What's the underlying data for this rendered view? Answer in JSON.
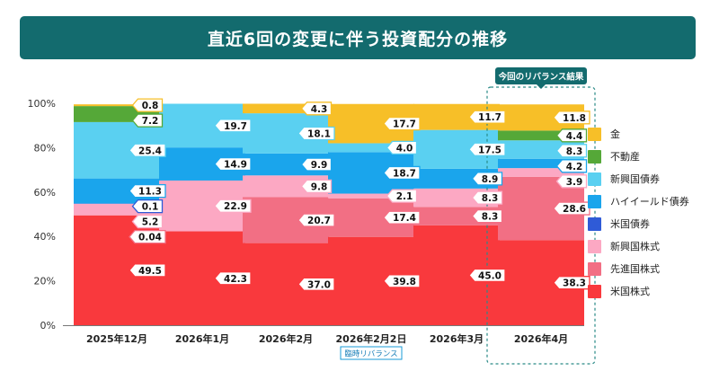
{
  "title": "直近6回の変更に伴う投資配分の推移",
  "callout": "今回のリバランス結果",
  "special_note": "臨時リバランス",
  "colors": {
    "gold": "#f7bf28",
    "reit": "#55a838",
    "em_bond": "#5ad0f1",
    "high_yield": "#1aa5ec",
    "us_bond": "#2f5bd7",
    "em_equity": "#fca8c3",
    "dev_equity": "#f26f84",
    "us_equity": "#f9393d",
    "title_bg": "#136b6e"
  },
  "chart_data": {
    "type": "bar",
    "stacked": true,
    "title": "直近6回の変更に伴う投資配分の推移",
    "categories": [
      "2025年12月",
      "2026年1月",
      "2026年2月",
      "2026年2月2日",
      "2026年3月",
      "2026年4月"
    ],
    "ylim": [
      0,
      100
    ],
    "yticks": [
      "0%",
      "20%",
      "40%",
      "60%",
      "80%",
      "100%"
    ],
    "series": [
      {
        "name": "米国株式",
        "key": "us_equity",
        "values": [
          49.5,
          42.3,
          37.0,
          39.8,
          45.0,
          38.3
        ],
        "labels": [
          "49.5",
          "42.3",
          "37.0",
          "39.8",
          "45.0",
          "38.3"
        ]
      },
      {
        "name": "先進国株式",
        "key": "dev_equity",
        "values": [
          0.04,
          0,
          20.7,
          17.4,
          8.3,
          28.6
        ],
        "labels": [
          "0.04",
          "",
          "20.7",
          "17.4",
          "8.3",
          "28.6"
        ]
      },
      {
        "name": "新興国株式",
        "key": "em_equity",
        "values": [
          5.2,
          22.9,
          9.8,
          2.1,
          8.3,
          3.9
        ],
        "labels": [
          "5.2",
          "22.9",
          "9.8",
          "2.1",
          "8.3",
          "3.9"
        ]
      },
      {
        "name": "米国債券",
        "key": "us_bond",
        "values": [
          0.1,
          0,
          0,
          0,
          0,
          0
        ],
        "labels": [
          "0.1",
          "",
          "",
          "",
          "",
          ""
        ]
      },
      {
        "name": "ハイイールド債券",
        "key": "high_yield",
        "values": [
          11.3,
          14.9,
          9.9,
          18.7,
          8.9,
          4.2
        ],
        "labels": [
          "11.3",
          "14.9",
          "9.9",
          "18.7",
          "8.9",
          "4.2"
        ]
      },
      {
        "name": "新興国債券",
        "key": "em_bond",
        "values": [
          25.4,
          19.7,
          18.1,
          4.0,
          17.5,
          8.3
        ],
        "labels": [
          "25.4",
          "19.7",
          "18.1",
          "4.0",
          "17.5",
          "8.3"
        ]
      },
      {
        "name": "不動産",
        "key": "reit",
        "values": [
          7.2,
          0,
          0,
          0,
          0,
          4.4
        ],
        "labels": [
          "7.2",
          "",
          "",
          "",
          "",
          "4.4"
        ]
      },
      {
        "name": "金",
        "key": "gold",
        "values": [
          0.8,
          0,
          4.3,
          17.7,
          11.7,
          11.8
        ],
        "labels": [
          "0.8",
          "",
          "4.3",
          "17.7",
          "11.7",
          "11.8"
        ]
      }
    ],
    "legend": [
      "金",
      "不動産",
      "新興国債券",
      "ハイイールド債券",
      "米国債券",
      "新興国株式",
      "先進国株式",
      "米国株式"
    ],
    "legend_position": "right",
    "highlight_category": "2026年4月",
    "annotated_category": "2026年2月2日"
  }
}
